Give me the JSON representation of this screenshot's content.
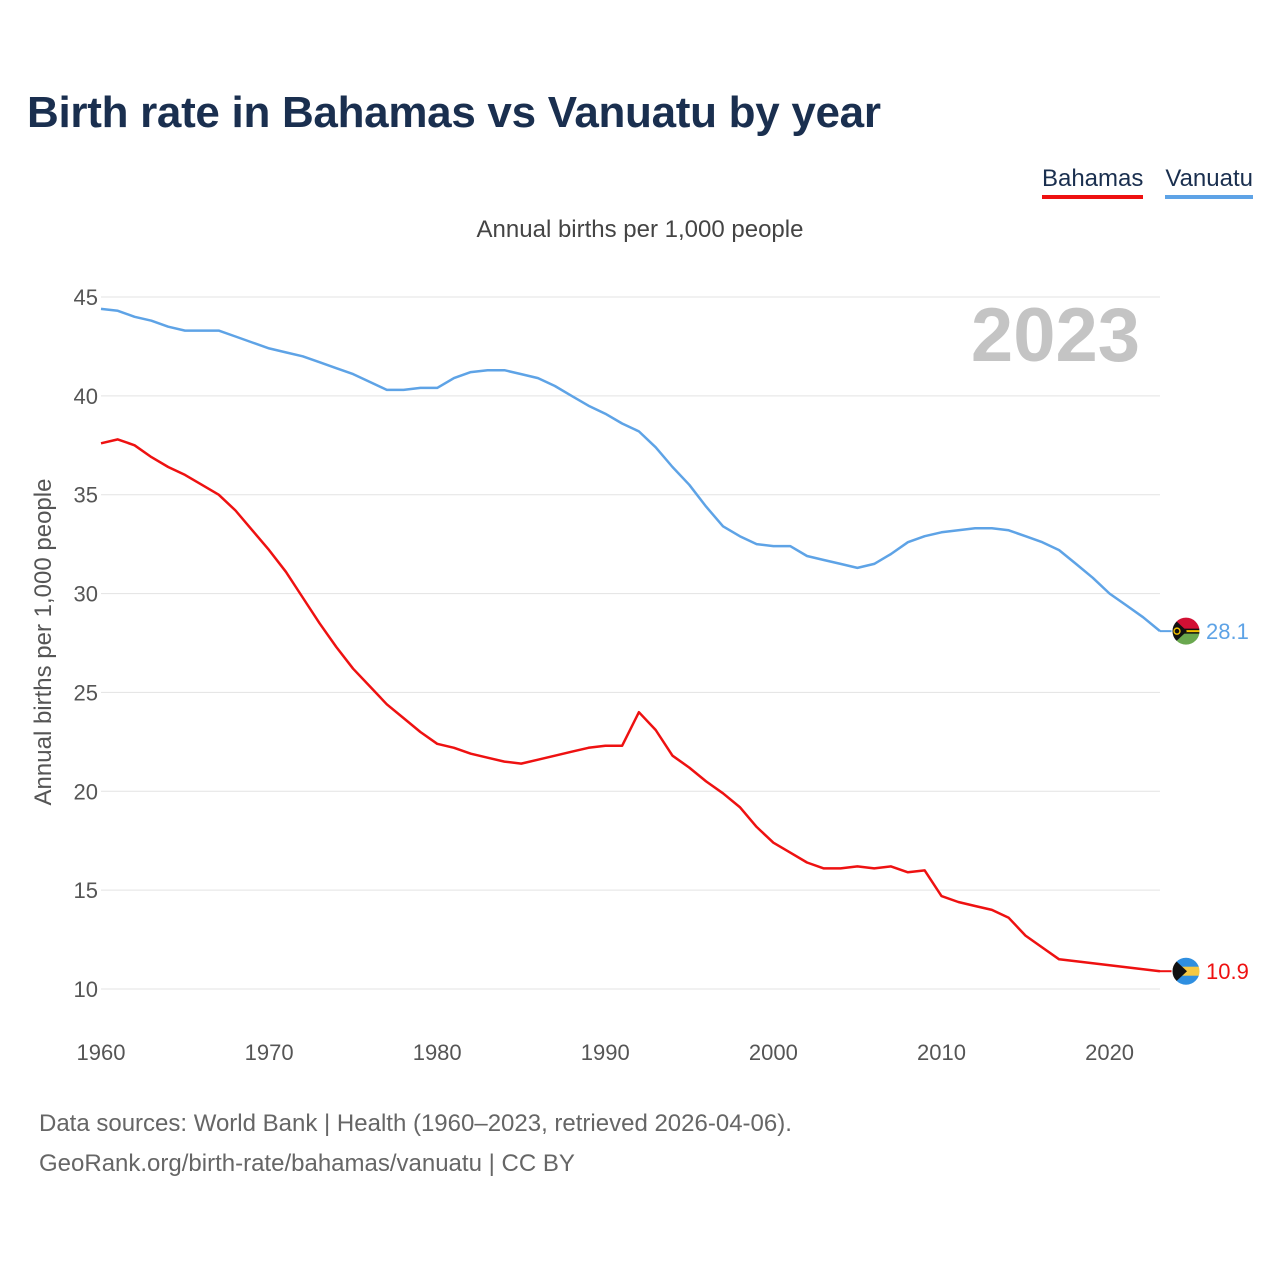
{
  "title": "Birth rate in Bahamas vs Vanuatu by year",
  "subtitle": "Annual births per 1,000 people",
  "legend": [
    {
      "name": "Bahamas",
      "color": "#ee1111"
    },
    {
      "name": "Vanuatu",
      "color": "#5ea3e6"
    }
  ],
  "year_watermark": "2023",
  "footer": {
    "line1": "Data sources: World Bank | Health (1960–2023, retrieved 2026-04-06).",
    "line2": "GeoRank.org/birth-rate/bahamas/vanuatu | CC BY"
  },
  "chart_data": {
    "type": "line",
    "title": "Birth rate in Bahamas vs Vanuatu by year",
    "xlabel": "",
    "ylabel": "Annual births per 1,000 people",
    "xlim": [
      1960,
      2023
    ],
    "ylim": [
      10,
      45
    ],
    "x_ticks": [
      1960,
      1970,
      1980,
      1990,
      2000,
      2010,
      2020
    ],
    "y_ticks": [
      10,
      15,
      20,
      25,
      30,
      35,
      40,
      45
    ],
    "grid": true,
    "legend_position": "top-right",
    "x": [
      1960,
      1961,
      1962,
      1963,
      1964,
      1965,
      1966,
      1967,
      1968,
      1969,
      1970,
      1971,
      1972,
      1973,
      1974,
      1975,
      1976,
      1977,
      1978,
      1979,
      1980,
      1981,
      1982,
      1983,
      1984,
      1985,
      1986,
      1987,
      1988,
      1989,
      1990,
      1991,
      1992,
      1993,
      1994,
      1995,
      1996,
      1997,
      1998,
      1999,
      2000,
      2001,
      2002,
      2003,
      2004,
      2005,
      2006,
      2007,
      2008,
      2009,
      2010,
      2011,
      2012,
      2013,
      2014,
      2015,
      2016,
      2017,
      2018,
      2019,
      2020,
      2021,
      2022,
      2023
    ],
    "series": [
      {
        "name": "Bahamas",
        "color": "#ee1111",
        "end_label": "10.9",
        "values": [
          37.6,
          37.8,
          37.5,
          36.9,
          36.4,
          36.0,
          35.5,
          35.0,
          34.2,
          33.2,
          32.2,
          31.1,
          29.8,
          28.5,
          27.3,
          26.2,
          25.3,
          24.4,
          23.7,
          23.0,
          22.4,
          22.2,
          21.9,
          21.7,
          21.5,
          21.4,
          21.6,
          21.8,
          22.0,
          22.2,
          22.3,
          22.3,
          24.0,
          23.1,
          21.8,
          21.2,
          20.5,
          19.9,
          19.2,
          18.2,
          17.4,
          16.9,
          16.4,
          16.1,
          16.1,
          16.2,
          16.1,
          16.2,
          15.9,
          16.0,
          14.7,
          14.4,
          14.2,
          14.0,
          13.6,
          12.7,
          12.1,
          11.5,
          11.4,
          11.3,
          11.2,
          11.1,
          11.0,
          10.9
        ]
      },
      {
        "name": "Vanuatu",
        "color": "#5ea3e6",
        "end_label": "28.1",
        "values": [
          44.4,
          44.3,
          44.0,
          43.8,
          43.5,
          43.3,
          43.3,
          43.3,
          43.0,
          42.7,
          42.4,
          42.2,
          42.0,
          41.7,
          41.4,
          41.1,
          40.7,
          40.3,
          40.3,
          40.4,
          40.4,
          40.9,
          41.2,
          41.3,
          41.3,
          41.1,
          40.9,
          40.5,
          40.0,
          39.5,
          39.1,
          38.6,
          38.2,
          37.4,
          36.4,
          35.5,
          34.4,
          33.4,
          32.9,
          32.5,
          32.4,
          32.4,
          31.9,
          31.7,
          31.5,
          31.3,
          31.5,
          32.0,
          32.6,
          32.9,
          33.1,
          33.2,
          33.3,
          33.3,
          33.2,
          32.9,
          32.6,
          32.2,
          31.5,
          30.8,
          30.0,
          29.4,
          28.8,
          28.1
        ]
      }
    ]
  }
}
